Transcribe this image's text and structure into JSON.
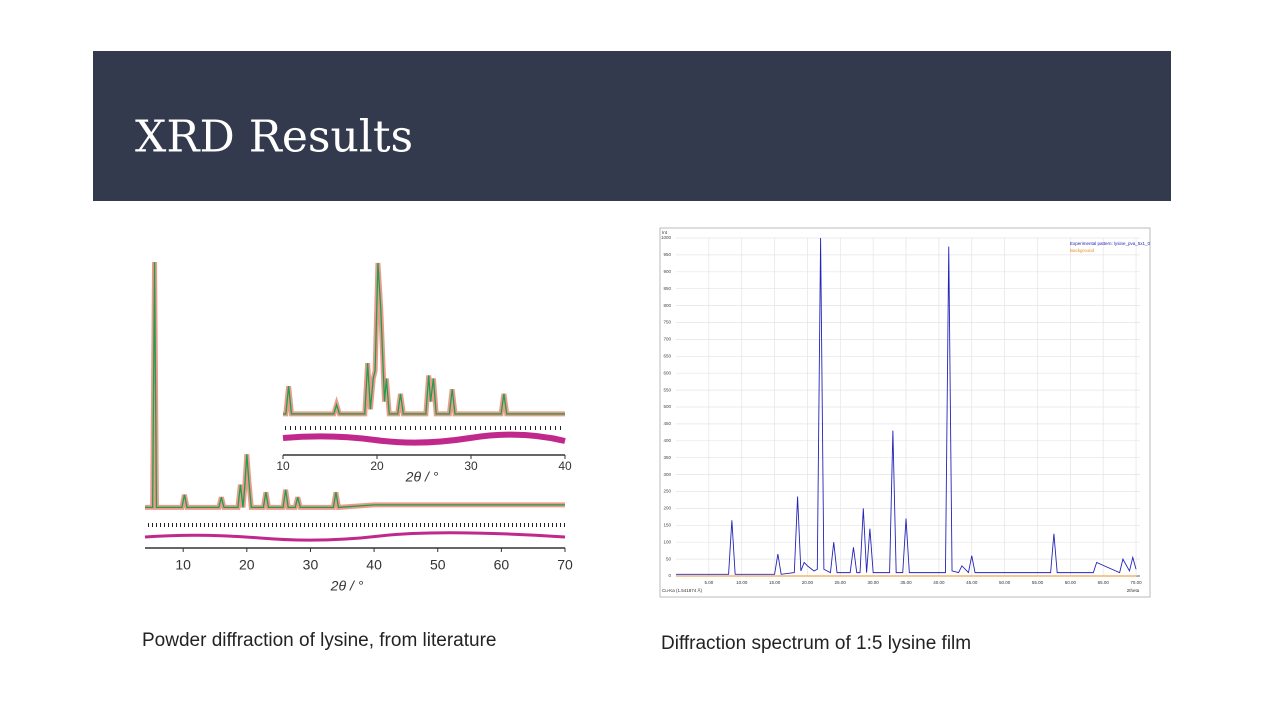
{
  "title": "XRD Results",
  "captions": [
    "Powder diffraction of lysine, from literature",
    "Diffraction spectrum of 1:5 lysine film"
  ],
  "chart_data": [
    {
      "type": "line",
      "xlabel": "2θ / °",
      "color": "#1e9e50",
      "x": [
        4,
        5.2,
        5.5,
        5.8,
        9.8,
        10.2,
        10.6,
        15.6,
        16,
        16.4,
        18.6,
        19,
        19.4,
        19.7,
        20,
        20.3,
        20.7,
        22.6,
        23,
        23.4,
        25.7,
        26.1,
        26.5,
        27.6,
        28,
        28.4,
        33.6,
        34,
        34.4,
        40,
        50,
        60,
        70
      ],
      "values": [
        3,
        3,
        100,
        3,
        3,
        8,
        3,
        3,
        7,
        3,
        3,
        12,
        3,
        12,
        24,
        14,
        3,
        3,
        9,
        3,
        3,
        10,
        3,
        3,
        7,
        3,
        3,
        9,
        3,
        4,
        4,
        4,
        4
      ],
      "xlim": [
        4,
        70
      ],
      "ylim": [
        0,
        100
      ],
      "xticks": [
        10,
        20,
        30,
        40,
        50,
        60,
        70
      ]
    },
    {
      "type": "line",
      "xlabel": "2θ / °",
      "color": "#1e9e50",
      "x": [
        10,
        10.3,
        10.6,
        10.9,
        15.4,
        15.7,
        16,
        18.7,
        19,
        19.3,
        19.6,
        19.8,
        20.1,
        20.4,
        20.8,
        21,
        21.3,
        22.2,
        22.5,
        22.8,
        25.2,
        25.5,
        25.7,
        26,
        26.3,
        27.7,
        28,
        28.3,
        33.2,
        33.5,
        33.8,
        40
      ],
      "values": [
        2,
        2,
        20,
        2,
        2,
        8,
        2,
        2,
        35,
        5,
        25,
        30,
        100,
        70,
        10,
        25,
        2,
        2,
        15,
        2,
        2,
        27,
        10,
        25,
        2,
        2,
        18,
        2,
        2,
        15,
        2,
        2
      ],
      "xlim": [
        10,
        40
      ],
      "ylim": [
        0,
        100
      ],
      "xticks": [
        10,
        20,
        30,
        40
      ]
    },
    {
      "type": "line",
      "ylabel": "Int",
      "xlabel": "2theta",
      "note": "Cu-Ka (1.541874 Å)",
      "grid": true,
      "x": [
        0,
        8,
        8.5,
        9,
        15,
        15.5,
        16,
        18,
        18.5,
        19,
        19.5,
        20,
        21,
        21.5,
        22,
        22.5,
        23.5,
        24,
        24.5,
        26.5,
        27,
        27.5,
        28,
        28.5,
        29,
        29.5,
        30,
        32.5,
        33,
        33.5,
        34.5,
        35,
        35.5,
        41,
        41.5,
        42,
        43,
        43.5,
        44.5,
        45,
        45.5,
        57,
        57.5,
        58,
        63.5,
        64,
        67.5,
        68,
        69,
        69.5,
        70
      ],
      "series": [
        {
          "name": "Experimental pattern: lysine_pva_5x1_0",
          "color": "#2424b8",
          "values": [
            5,
            5,
            165,
            5,
            5,
            65,
            5,
            10,
            235,
            15,
            40,
            30,
            15,
            20,
            1000,
            20,
            10,
            100,
            10,
            10,
            85,
            10,
            10,
            200,
            10,
            140,
            10,
            10,
            430,
            10,
            10,
            170,
            10,
            10,
            975,
            15,
            10,
            30,
            10,
            60,
            10,
            10,
            125,
            10,
            10,
            40,
            10,
            50,
            15,
            55,
            20
          ]
        },
        {
          "name": "Background",
          "color": "#e8902a",
          "values": [
            0,
            0,
            0,
            0,
            0,
            0,
            0,
            0,
            0,
            0,
            0,
            0,
            0,
            0,
            0,
            0,
            0,
            0,
            0,
            0,
            0,
            0,
            0,
            0,
            0,
            0,
            0,
            0,
            0,
            0,
            0,
            0,
            0,
            0,
            0,
            0,
            0,
            0,
            0,
            0,
            0,
            0,
            0,
            0,
            0,
            0,
            0,
            0,
            0,
            0,
            0
          ]
        }
      ],
      "xlim": [
        0,
        70.6
      ],
      "ylim": [
        0,
        1000
      ],
      "xticks": [
        {
          "value": 5,
          "label": "5.00"
        },
        {
          "value": 10,
          "label": "10.00"
        },
        {
          "value": 15,
          "label": "15.00"
        },
        {
          "value": 20,
          "label": "20.00"
        },
        {
          "value": 25,
          "label": "25.00"
        },
        {
          "value": 30,
          "label": "30.00"
        },
        {
          "value": 35,
          "label": "35.00"
        },
        {
          "value": 40,
          "label": "40.00"
        },
        {
          "value": 45,
          "label": "45.00"
        },
        {
          "value": 50,
          "label": "50.00"
        },
        {
          "value": 55,
          "label": "55.00"
        },
        {
          "value": 60,
          "label": "60.00"
        },
        {
          "value": 65,
          "label": "65.00"
        },
        {
          "value": 70,
          "label": "70.00"
        }
      ],
      "yticks": [
        0,
        50,
        100,
        150,
        200,
        250,
        300,
        350,
        400,
        450,
        500,
        550,
        600,
        650,
        700,
        750,
        800,
        850,
        900,
        950,
        1000
      ]
    }
  ]
}
